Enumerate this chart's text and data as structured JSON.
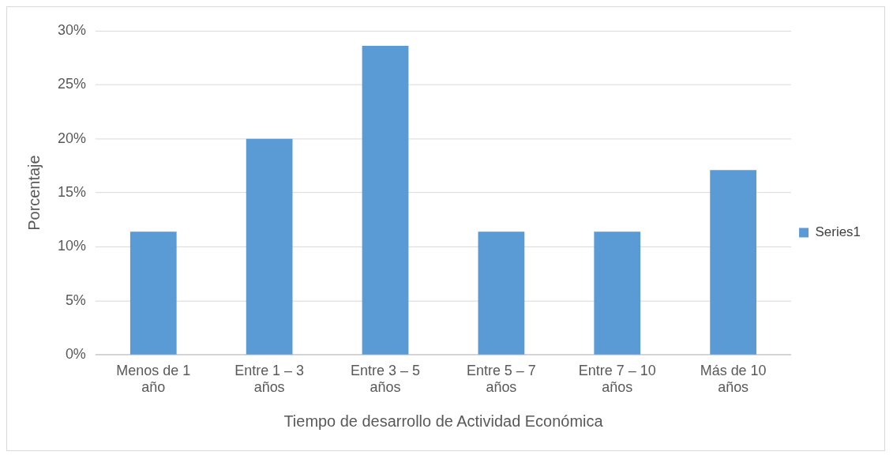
{
  "chart_data": {
    "type": "bar",
    "xlabel": "Tiempo de desarrollo de Actividad Económica",
    "ylabel": "Porcentaje",
    "categories": [
      "Menos de 1 año",
      "Entre 1 – 3 años",
      "Entre 3 – 5 años",
      "Entre 5 – 7 años",
      "Entre 7 – 10 años",
      "Más de 10 años"
    ],
    "series": [
      {
        "name": "Series1",
        "color": "#5b9bd5",
        "values": [
          11.4,
          20,
          28.6,
          11.4,
          11.4,
          17.1
        ]
      }
    ],
    "ylim": [
      0,
      30
    ],
    "yticks": [
      {
        "value": 0,
        "label": "0%"
      },
      {
        "value": 5,
        "label": "5%"
      },
      {
        "value": 10,
        "label": "10%"
      },
      {
        "value": 15,
        "label": "15%"
      },
      {
        "value": 20,
        "label": "20%"
      },
      {
        "value": 25,
        "label": "25%"
      },
      {
        "value": 30,
        "label": "30%"
      }
    ],
    "grid": "y",
    "legend": "right"
  }
}
